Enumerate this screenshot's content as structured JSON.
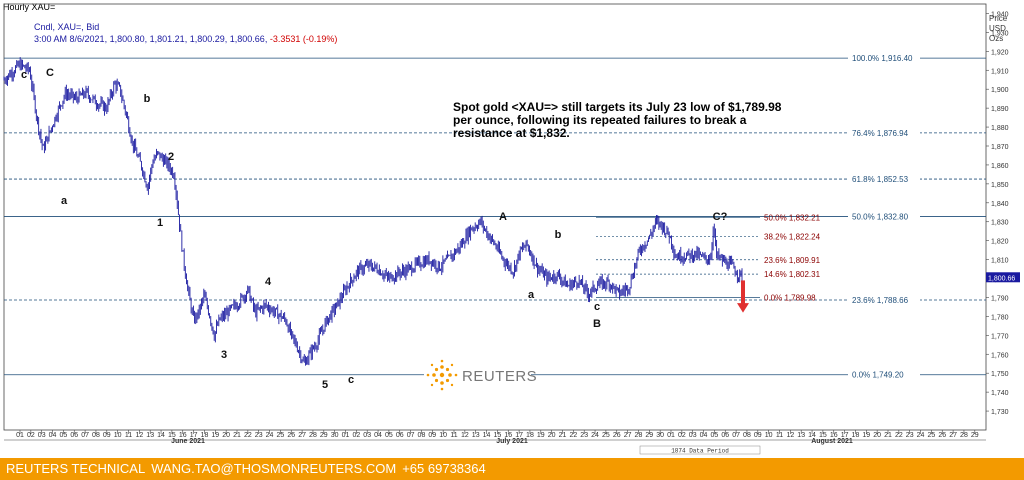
{
  "window_title": "Hourly XAU=",
  "instrument_line": "Cndl, XAU=, Bid",
  "quote": {
    "time": "3:00 AM 8/6/2021",
    "open": "1,800.80",
    "high": "1,801.21",
    "low": "1,800.29",
    "close": "1,800.66",
    "change": "-3.3531",
    "change_pct": "(-0.19%)"
  },
  "price_axis_header": [
    "Price",
    "USD",
    "Ozs"
  ],
  "current_price_tag": "1,800.66",
  "comment": "Spot gold <XAU=> still targets its July 23 low of $1,789.98 per ounce, following its repeated failures to break a resistance at $1,832.",
  "logo_text": "REUTERS",
  "data_period_label": "1874 Data Period",
  "footer": {
    "name": "REUTERS TECHNICAL",
    "email": "WANG.TAO@THOSMONREUTERS.COM",
    "phone": "+65 69738364"
  },
  "colors": {
    "candle": "#1a1aa0",
    "fib_major": "#1f4e79",
    "fib_minor_label": "#8b0000",
    "arrow": "#e03030",
    "footer_bg": "#f39a00"
  },
  "chart_data": {
    "type": "candlestick",
    "ylim": [
      1720,
      1945
    ],
    "y_ticks": [
      1730,
      1740,
      1750,
      1760,
      1770,
      1780,
      1790,
      1800,
      1810,
      1820,
      1830,
      1840,
      1850,
      1860,
      1870,
      1880,
      1890,
      1900,
      1910,
      1920,
      1930,
      1940
    ],
    "x_ticks": [
      "01",
      "02",
      "03",
      "04",
      "05",
      "06",
      "07",
      "08",
      "09",
      "10",
      "11",
      "12",
      "13",
      "14",
      "15",
      "16",
      "17",
      "18",
      "19",
      "20",
      "21",
      "22",
      "23",
      "24",
      "25",
      "26",
      "27",
      "28",
      "29",
      "30",
      "01",
      "02",
      "03",
      "04",
      "05",
      "06",
      "07",
      "08",
      "09",
      "10",
      "11",
      "12",
      "13",
      "14",
      "15",
      "16",
      "17",
      "18",
      "19",
      "20",
      "21",
      "22",
      "23",
      "24",
      "25",
      "26",
      "27",
      "28",
      "29",
      "30",
      "01",
      "02",
      "03",
      "04",
      "05",
      "06",
      "07",
      "08",
      "09",
      "10",
      "11",
      "12",
      "13",
      "14",
      "15",
      "16",
      "17",
      "18",
      "19",
      "20",
      "21",
      "22",
      "23",
      "24",
      "25",
      "26",
      "27",
      "28",
      "29"
    ],
    "month_labels": [
      "June 2021",
      "July 2021",
      "August 2021"
    ],
    "price_path": [
      [
        0,
        1905
      ],
      [
        1.5,
        1913
      ],
      [
        2.5,
        1910
      ],
      [
        3.2,
        1885
      ],
      [
        3.8,
        1868
      ],
      [
        4.5,
        1878
      ],
      [
        5.2,
        1888
      ],
      [
        6,
        1898
      ],
      [
        7,
        1895
      ],
      [
        8,
        1898
      ],
      [
        9,
        1893
      ],
      [
        10,
        1890
      ],
      [
        10.8,
        1903
      ],
      [
        11.3,
        1900
      ],
      [
        12,
        1885
      ],
      [
        12.5,
        1872
      ],
      [
        13,
        1865
      ],
      [
        13.5,
        1858
      ],
      [
        14,
        1848
      ],
      [
        14.5,
        1862
      ],
      [
        15,
        1866
      ],
      [
        16,
        1860
      ],
      [
        16.6,
        1855
      ],
      [
        17,
        1835
      ],
      [
        17.5,
        1810
      ],
      [
        18,
        1792
      ],
      [
        18.5,
        1778
      ],
      [
        19,
        1782
      ],
      [
        19.5,
        1791
      ],
      [
        20,
        1782
      ],
      [
        20.5,
        1770
      ],
      [
        21,
        1778
      ],
      [
        22,
        1783
      ],
      [
        23,
        1788
      ],
      [
        23.8,
        1794
      ],
      [
        24.5,
        1782
      ],
      [
        25.5,
        1786
      ],
      [
        26.5,
        1782
      ],
      [
        27.5,
        1778
      ],
      [
        28,
        1770
      ],
      [
        28.6,
        1764
      ],
      [
        29.3,
        1755
      ],
      [
        29.8,
        1760
      ],
      [
        30.5,
        1766
      ],
      [
        31.5,
        1778
      ],
      [
        32.5,
        1786
      ],
      [
        33.5,
        1796
      ],
      [
        34.5,
        1804
      ],
      [
        35.5,
        1807
      ],
      [
        36.5,
        1805
      ],
      [
        37.5,
        1800
      ],
      [
        38.5,
        1803
      ],
      [
        39.5,
        1805
      ],
      [
        40.5,
        1808
      ],
      [
        41.5,
        1810
      ],
      [
        42.5,
        1806
      ],
      [
        43.5,
        1811
      ],
      [
        44.5,
        1817
      ],
      [
        45.5,
        1826
      ],
      [
        46.5,
        1830
      ],
      [
        47,
        1825
      ],
      [
        48,
        1817
      ],
      [
        48.5,
        1812
      ],
      [
        49,
        1808
      ],
      [
        49.7,
        1804
      ],
      [
        50.3,
        1814
      ],
      [
        51,
        1818
      ],
      [
        52,
        1806
      ],
      [
        53,
        1800
      ],
      [
        54,
        1802
      ],
      [
        55,
        1796
      ],
      [
        56,
        1799
      ],
      [
        57,
        1792
      ],
      [
        58,
        1797
      ],
      [
        59,
        1798
      ],
      [
        60,
        1792
      ],
      [
        61,
        1796
      ],
      [
        62,
        1815
      ],
      [
        63,
        1822
      ],
      [
        63.6,
        1830
      ],
      [
        64.2,
        1828
      ],
      [
        65,
        1822
      ],
      [
        65.5,
        1812
      ],
      [
        66.5,
        1812
      ],
      [
        67.5,
        1813
      ],
      [
        68.5,
        1810
      ],
      [
        69,
        1812
      ],
      [
        69.2,
        1830
      ],
      [
        69.5,
        1812
      ],
      [
        70.5,
        1808
      ],
      [
        71,
        1807
      ],
      [
        71.5,
        1803
      ],
      [
        72,
        1801
      ]
    ],
    "x_range": [
      0,
      92
    ],
    "fibonacci_major": [
      {
        "label": "100.0%",
        "value": "1,916.40"
      },
      {
        "label": "76.4%",
        "value": "1,876.94"
      },
      {
        "label": "61.8%",
        "value": "1,852.53"
      },
      {
        "label": "50.0%",
        "value": "1,832.80"
      },
      {
        "label": "23.6%",
        "value": "1,788.66"
      },
      {
        "label": "0.0%",
        "value": "1,749.20"
      }
    ],
    "fibonacci_minor": [
      {
        "label": "50.0%",
        "value": "1,832.21"
      },
      {
        "label": "38.2%",
        "value": "1,822.24"
      },
      {
        "label": "23.6%",
        "value": "1,809.91"
      },
      {
        "label": "14.6%",
        "value": "1,802.31"
      },
      {
        "label": "0.0%",
        "value": "1,789.98"
      }
    ],
    "wave_labels": [
      "c",
      "C",
      "a",
      "b",
      "2",
      "1",
      "4",
      "3",
      "5",
      "c",
      "A",
      "b",
      "a",
      "c",
      "B",
      "C?"
    ]
  }
}
